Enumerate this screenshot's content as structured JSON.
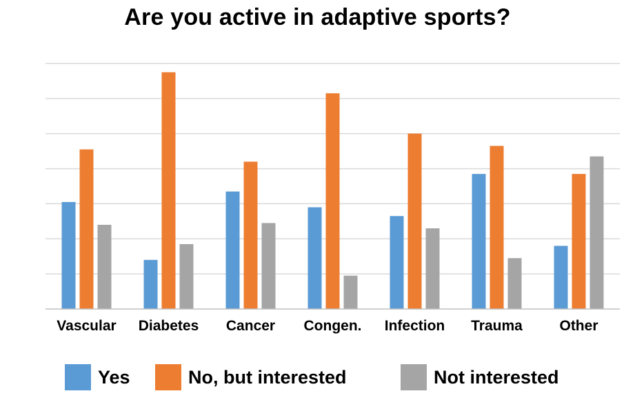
{
  "chart_data": {
    "type": "bar",
    "title": "Are you active in adaptive sports?",
    "categories": [
      "Vascular",
      "Diabetes",
      "Cancer",
      "Congen.",
      "Infection",
      "Trauma",
      "Other"
    ],
    "series": [
      {
        "name": "Yes",
        "color": "#5B9BD5",
        "values": [
          30.5,
          14,
          33.5,
          29,
          26.5,
          38.5,
          18
        ]
      },
      {
        "name": "No, but interested",
        "color": "#ED7D31",
        "values": [
          45.5,
          67.5,
          42,
          61.5,
          50,
          46.5,
          38.5
        ]
      },
      {
        "name": "Not interested",
        "color": "#A5A5A5",
        "values": [
          24,
          18.5,
          24.5,
          9.5,
          23,
          14.5,
          43.5
        ]
      }
    ],
    "ylim": [
      0,
      70
    ],
    "yticks": [
      10,
      20,
      30,
      40,
      50,
      60,
      70
    ],
    "ytick_labels_shown": false,
    "grid": true,
    "legend": "bottom"
  }
}
